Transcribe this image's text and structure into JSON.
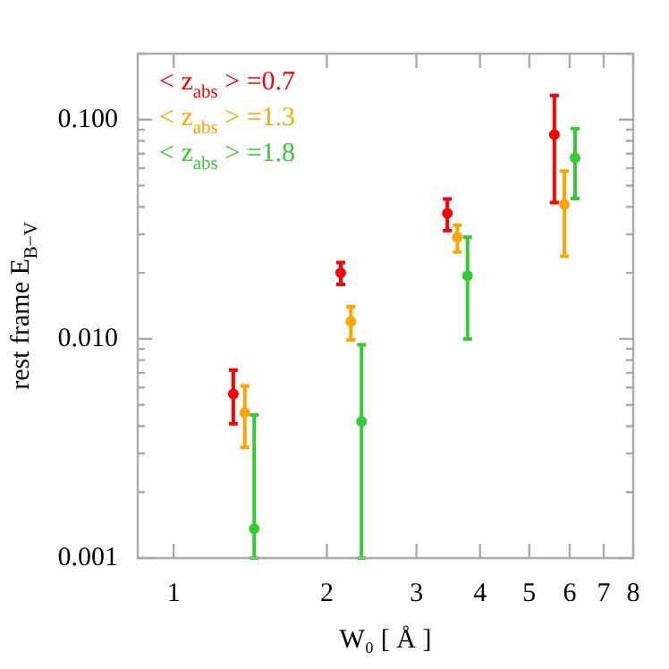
{
  "chart_data": {
    "type": "scatter",
    "xlabel": "W₀ [ Å ]",
    "ylabel": "rest frame E$_{B−V}$",
    "log": "xy",
    "xlim": [
      0.85,
      8
    ],
    "ylim": [
      0.001,
      0.2
    ],
    "xticks": [
      1,
      2,
      3,
      4,
      5,
      6,
      7,
      8
    ],
    "yticks": [
      {
        "value": 0.001,
        "label": "0.001"
      },
      {
        "value": 0.002,
        "label": null
      },
      {
        "value": 0.003,
        "label": null
      },
      {
        "value": 0.004,
        "label": null
      },
      {
        "value": 0.005,
        "label": null
      },
      {
        "value": 0.006,
        "label": null
      },
      {
        "value": 0.007,
        "label": null
      },
      {
        "value": 0.008,
        "label": null
      },
      {
        "value": 0.009,
        "label": null
      },
      {
        "value": 0.01,
        "label": "0.010"
      },
      {
        "value": 0.02,
        "label": null
      },
      {
        "value": 0.03,
        "label": null
      },
      {
        "value": 0.04,
        "label": null
      },
      {
        "value": 0.05,
        "label": null
      },
      {
        "value": 0.06,
        "label": null
      },
      {
        "value": 0.07,
        "label": null
      },
      {
        "value": 0.08,
        "label": null
      },
      {
        "value": 0.09,
        "label": null
      },
      {
        "value": 0.1,
        "label": "0.100"
      },
      {
        "value": 0.2,
        "label": null
      }
    ],
    "grid": false,
    "legend": "top left",
    "marker": "circle",
    "series": [
      {
        "name": "< z$_{abs}$ > =0.7",
        "color": "#ff0000",
        "x": [
          1.31,
          2.13,
          3.45,
          5.6
        ],
        "values": [
          0.0056,
          0.02,
          0.0374,
          0.0855
        ],
        "errors": [
          [
            0.0041,
            0.0072
          ],
          [
            0.0177,
            0.0223
          ],
          [
            0.0312,
            0.0435
          ],
          [
            0.0419,
            0.129
          ]
        ]
      },
      {
        "name": "< z$_{abs}$ > =1.3",
        "color": "#ffa500",
        "x": [
          1.38,
          2.23,
          3.61,
          5.86
        ],
        "values": [
          0.0046,
          0.012,
          0.0291,
          0.0411
        ],
        "errors": [
          [
            0.0032,
            0.0061
          ],
          [
            0.0099,
            0.014
          ],
          [
            0.0249,
            0.033
          ],
          [
            0.0238,
            0.0583
          ]
        ]
      },
      {
        "name": "< z$_{abs}$ > =1.8",
        "color": "#33cc33",
        "x": [
          1.44,
          2.34,
          3.78,
          6.15
        ],
        "values": [
          0.00136,
          0.0042,
          0.0194,
          0.067
        ],
        "errors": [
          [
            0.001,
            0.0045
          ],
          [
            0.001,
            0.0094
          ],
          [
            0.01,
            0.0291
          ],
          [
            0.0437,
            0.091
          ]
        ]
      }
    ]
  }
}
